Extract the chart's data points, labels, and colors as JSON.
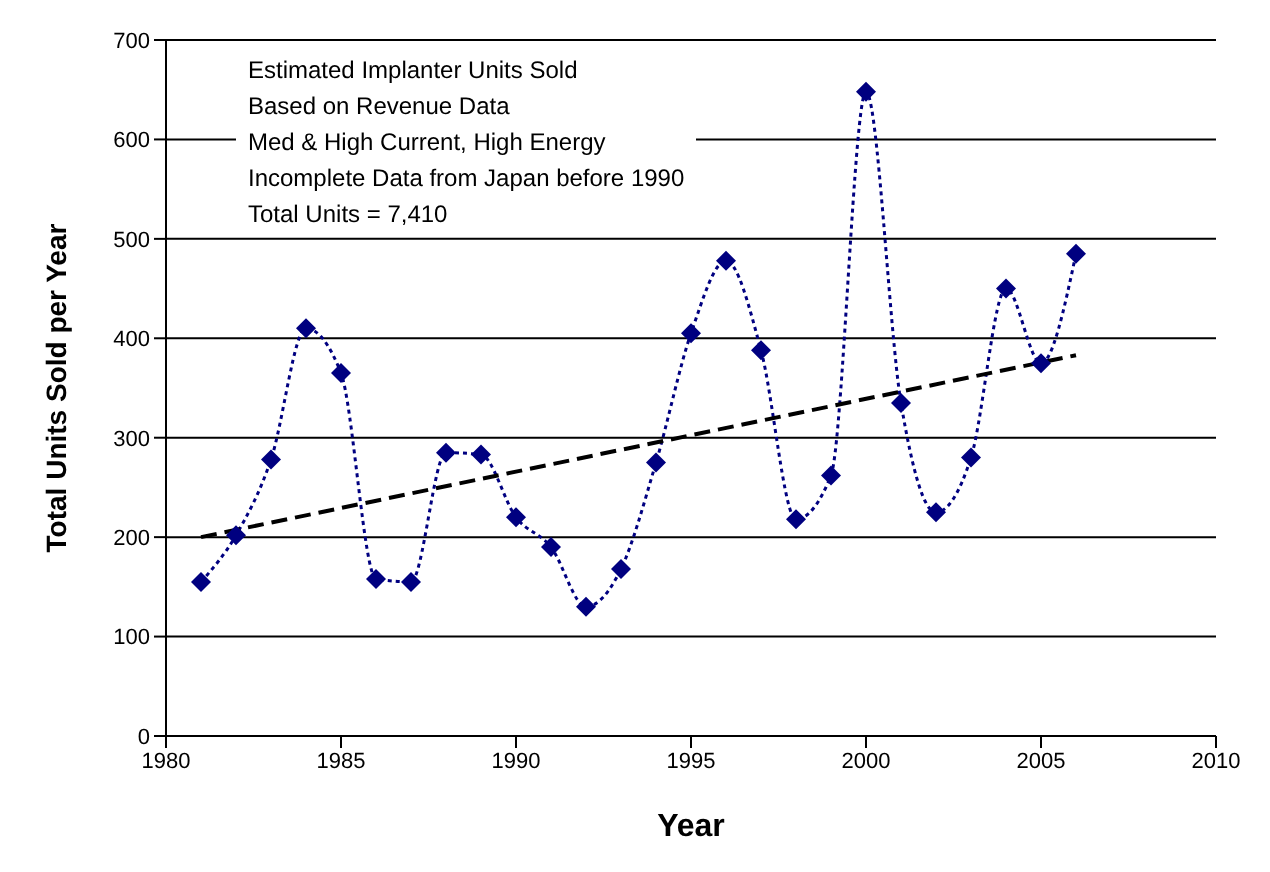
{
  "chart_data": {
    "type": "line",
    "xlabel": "Year",
    "ylabel": "Total Units Sold per Year",
    "x": [
      1981,
      1982,
      1983,
      1984,
      1985,
      1986,
      1987,
      1988,
      1989,
      1990,
      1991,
      1992,
      1993,
      1994,
      1995,
      1996,
      1997,
      1998,
      1999,
      2000,
      2001,
      2002,
      2003,
      2004,
      2005,
      2006
    ],
    "series": [
      {
        "color": "#000080",
        "marker": "diamond",
        "line_style": "dotted",
        "values": [
          155,
          202,
          278,
          410,
          365,
          158,
          155,
          285,
          283,
          220,
          190,
          130,
          168,
          275,
          405,
          478,
          388,
          218,
          262,
          648,
          335,
          225,
          280,
          450,
          375,
          485
        ]
      },
      {
        "type": "line",
        "color": "#000000",
        "marker": "none",
        "line_style": "dashed",
        "x": [
          1981,
          2006
        ],
        "values": [
          200,
          383
        ]
      }
    ],
    "annotations": [
      "Estimated Implanter Units Sold",
      "Based on Revenue Data",
      "Med & High Current, High Energy",
      "Incomplete Data from Japan before 1990",
      "Total Units = 7,410"
    ],
    "xlim": [
      1980,
      2010
    ],
    "xticks": [
      1980,
      1985,
      1990,
      1995,
      2000,
      2005,
      2010
    ],
    "ylim": [
      0,
      700
    ],
    "yticks": [
      0,
      100,
      200,
      300,
      400,
      500,
      600,
      700
    ],
    "grid": "y"
  }
}
